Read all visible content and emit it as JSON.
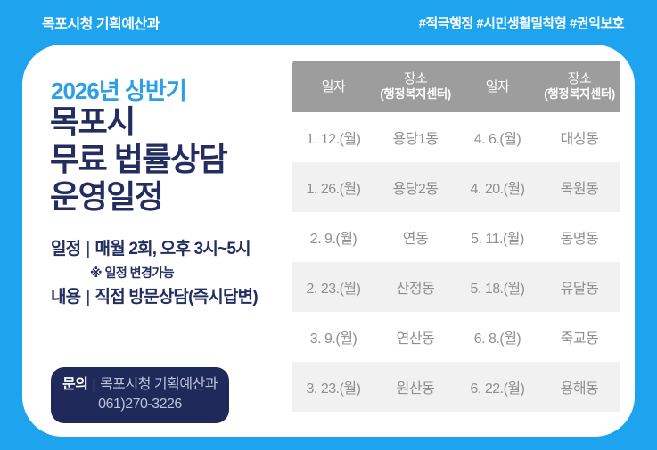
{
  "topbar": {
    "left": "목포시청 기획예산과",
    "hashtags": "#적극행정 #시민생활밀착형  #권익보호"
  },
  "card": {
    "subtitle": "2026년 상반기",
    "title_line1": "목포시",
    "title_line2": "무료 법률상담",
    "title_line3": "운영일정",
    "schedule": {
      "label": "일정",
      "sep": "|",
      "text": "매월 2회, 오후 3시~5시"
    },
    "note": "※ 일정 변경가능",
    "content": {
      "label": "내용",
      "sep": "|",
      "text": "직접 방문상담(즉시답변)"
    },
    "contact": {
      "label": "문의",
      "sep": "|",
      "dept": "목포시청 기획예산과",
      "phone": "061)270-3226"
    }
  },
  "table": {
    "headers": [
      {
        "line1": "일자",
        "line2": ""
      },
      {
        "line1": "장소",
        "line2": "(행정복지센터)"
      },
      {
        "line1": "일자",
        "line2": ""
      },
      {
        "line1": "장소",
        "line2": "(행정복지센터)"
      }
    ],
    "rows": [
      [
        "1. 12.(월)",
        "용당1동",
        "4. 6.(월)",
        "대성동"
      ],
      [
        "1. 26.(월)",
        "용당2동",
        "4. 20.(월)",
        "목원동"
      ],
      [
        "2. 9.(월)",
        "연동",
        "5. 11.(월)",
        "동명동"
      ],
      [
        "2. 23.(월)",
        "산정동",
        "5. 18.(월)",
        "유달동"
      ],
      [
        "3. 9.(월)",
        "연산동",
        "6. 8.(월)",
        "죽교동"
      ],
      [
        "3. 23.(월)",
        "원산동",
        "6. 22.(월)",
        "용해동"
      ]
    ]
  },
  "colors": {
    "background_blue": "#1ea3ee",
    "subtitle_blue": "#2d9fe6",
    "title_navy": "#232d5f",
    "badge_navy": "#1f2a5a",
    "badge_light_text": "#bdc4d8",
    "table_header_gray": "#9d9d9d",
    "table_row_text": "#8f8f8f",
    "table_row_alt": "#f1f1f1"
  }
}
